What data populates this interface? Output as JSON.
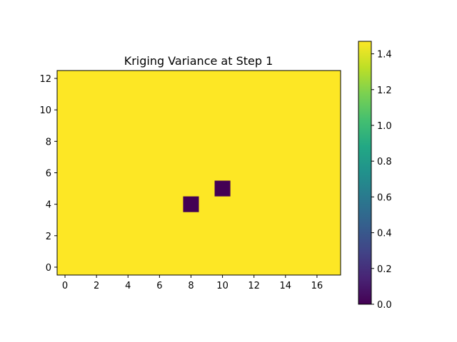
{
  "chart_data": {
    "type": "heatmap",
    "title": "Kriging Variance at Step 1",
    "xlabel": "",
    "ylabel": "",
    "xlim": [
      -0.5,
      17.5
    ],
    "ylim": [
      -0.5,
      12.5
    ],
    "x_ticks": [
      0,
      2,
      4,
      6,
      8,
      10,
      12,
      14,
      16
    ],
    "y_ticks": [
      0,
      2,
      4,
      6,
      8,
      10,
      12
    ],
    "nx": 18,
    "ny": 13,
    "background_value": 1.47,
    "cells": [
      {
        "x": 8,
        "y": 4,
        "value": 0.0
      },
      {
        "x": 10,
        "y": 5,
        "value": 0.0
      }
    ],
    "colormap": "viridis",
    "colorbar": {
      "min": 0.0,
      "max": 1.47,
      "ticks": [
        "0.0",
        "0.2",
        "0.4",
        "0.6",
        "0.8",
        "1.0",
        "1.2",
        "1.4"
      ]
    },
    "grid": false,
    "colors": {
      "high": "#fde725",
      "low": "#440154"
    }
  }
}
